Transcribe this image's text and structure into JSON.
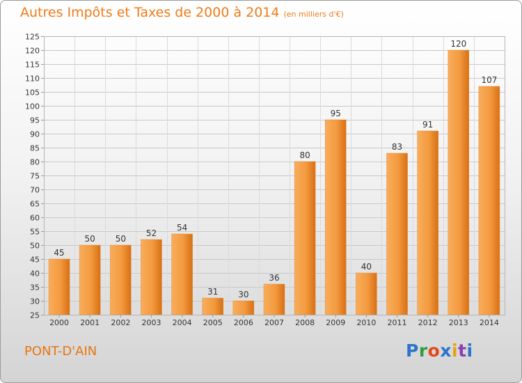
{
  "title": "Autres Impôts et Taxes de 2000 à 2014",
  "subtitle": "(en milliers d'€)",
  "place_name": "PONT-D'AIN",
  "logo": {
    "letters": [
      "P",
      "r",
      "o",
      "x",
      "i",
      "t",
      "i"
    ]
  },
  "colors": {
    "accent": "#ef7b16",
    "bar_light": "#f9ad5c",
    "bar_dark": "#d86f14",
    "grid": "#c8c8c8",
    "axis_text": "#333333"
  },
  "chart_data": {
    "type": "bar",
    "title": "Autres Impôts et Taxes de 2000 à 2014",
    "subtitle": "(en milliers d'€)",
    "xlabel": "",
    "ylabel": "",
    "categories": [
      "2000",
      "2001",
      "2002",
      "2003",
      "2004",
      "2005",
      "2006",
      "2007",
      "2008",
      "2009",
      "2010",
      "2011",
      "2012",
      "2013",
      "2014"
    ],
    "values": [
      45,
      50,
      50,
      52,
      54,
      31,
      30,
      36,
      80,
      95,
      40,
      83,
      91,
      120,
      107
    ],
    "ylim": [
      25,
      125
    ],
    "yticks": [
      25,
      30,
      35,
      40,
      45,
      50,
      55,
      60,
      65,
      70,
      75,
      80,
      85,
      90,
      95,
      100,
      105,
      110,
      115,
      120,
      125
    ],
    "grid": true,
    "legend": "none"
  }
}
